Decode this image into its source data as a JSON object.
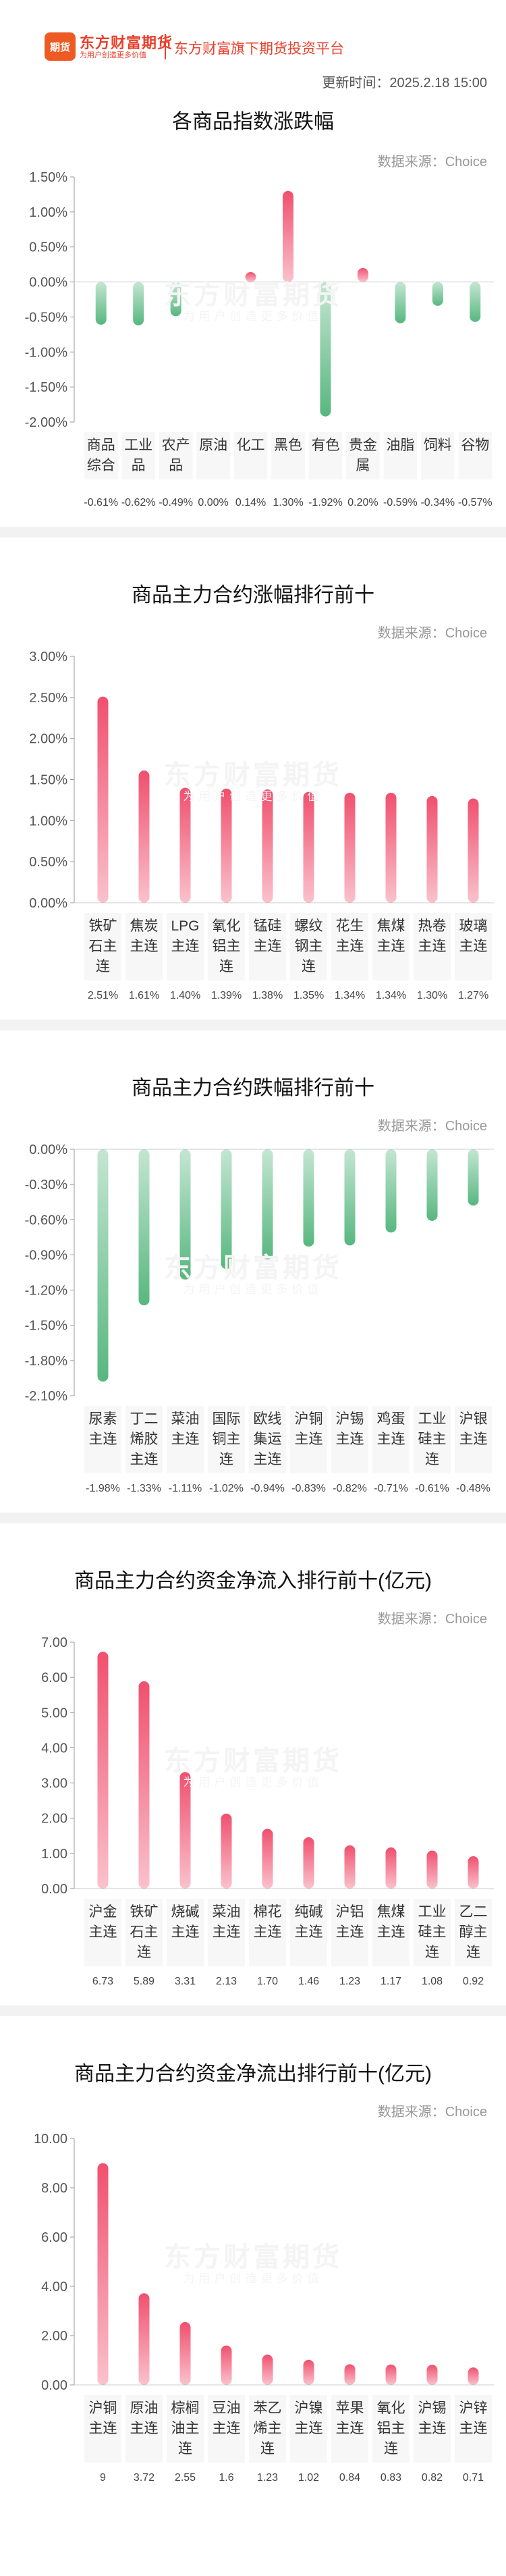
{
  "header": {
    "logo_text": "期货",
    "brand_name": "东方财富期货",
    "brand_slogan": "为用户创造更多价值",
    "platform_name": "东方财富旗下期货投资平台",
    "update_time": "更新时间：2025.2.18 15:00"
  },
  "colors": {
    "up": "#f0506e",
    "down": "#57b77f",
    "background": "#ffffff"
  },
  "watermark": {
    "main": "东方财富期货",
    "sub": "为用户创造更多价值"
  },
  "chart_data": [
    {
      "type": "bar",
      "title": "各商品指数涨跌幅",
      "source": "数据来源：Choice",
      "categories": [
        "商品综合",
        "工业品",
        "农产品",
        "原油",
        "化工",
        "黑色",
        "有色",
        "贵金属",
        "油脂",
        "饲料",
        "谷物"
      ],
      "values": [
        -0.61,
        -0.62,
        -0.49,
        0.0,
        0.14,
        1.3,
        -1.92,
        0.2,
        -0.59,
        -0.34,
        -0.57
      ],
      "value_labels": [
        "-0.61%",
        "-0.62%",
        "-0.49%",
        "0.00%",
        "0.14%",
        "1.30%",
        "-1.92%",
        "0.20%",
        "-0.59%",
        "-0.34%",
        "-0.57%"
      ],
      "y_ticks": [
        "1.50%",
        "1.00%",
        "0.50%",
        "0.00%",
        "-0.50%",
        "-1.00%",
        "-1.50%",
        "-2.00%"
      ],
      "ylim": [
        -2.0,
        1.5
      ],
      "unit": "%"
    },
    {
      "type": "bar",
      "title": "商品主力合约涨幅排行前十",
      "source": "数据来源：Choice",
      "categories": [
        "铁矿石主连",
        "焦炭主连",
        "LPG主连",
        "氧化铝主连",
        "锰硅主连",
        "螺纹钢主连",
        "花生主连",
        "焦煤主连",
        "热卷主连",
        "玻璃主连"
      ],
      "values": [
        2.51,
        1.61,
        1.4,
        1.39,
        1.38,
        1.35,
        1.34,
        1.34,
        1.3,
        1.27
      ],
      "value_labels": [
        "2.51%",
        "1.61%",
        "1.40%",
        "1.39%",
        "1.38%",
        "1.35%",
        "1.34%",
        "1.34%",
        "1.30%",
        "1.27%"
      ],
      "y_ticks": [
        "3.00%",
        "2.50%",
        "2.00%",
        "1.50%",
        "1.00%",
        "0.50%",
        "0.00%"
      ],
      "ylim": [
        0,
        3.0
      ],
      "unit": "%"
    },
    {
      "type": "bar",
      "title": "商品主力合约跌幅排行前十",
      "source": "数据来源：Choice",
      "categories": [
        "尿素主连",
        "丁二烯胶主连",
        "菜油主连",
        "国际铜主连",
        "欧线集运主连",
        "沪铜主连",
        "沪锡主连",
        "鸡蛋主连",
        "工业硅主连",
        "沪银主连"
      ],
      "values": [
        -1.98,
        -1.33,
        -1.11,
        -1.02,
        -0.94,
        -0.83,
        -0.82,
        -0.71,
        -0.61,
        -0.48
      ],
      "value_labels": [
        "-1.98%",
        "-1.33%",
        "-1.11%",
        "-1.02%",
        "-0.94%",
        "-0.83%",
        "-0.82%",
        "-0.71%",
        "-0.61%",
        "-0.48%"
      ],
      "y_ticks": [
        "0.00%",
        "-0.30%",
        "-0.60%",
        "-0.90%",
        "-1.20%",
        "-1.50%",
        "-1.80%",
        "-2.10%"
      ],
      "ylim": [
        -2.1,
        0
      ],
      "unit": "%"
    },
    {
      "type": "bar",
      "title": "商品主力合约资金净流入排行前十(亿元)",
      "source": "数据来源：Choice",
      "categories": [
        "沪金主连",
        "铁矿石主连",
        "烧碱主连",
        "菜油主连",
        "棉花主连",
        "纯碱主连",
        "沪铝主连",
        "焦煤主连",
        "工业硅主连",
        "乙二醇主连"
      ],
      "values": [
        6.73,
        5.89,
        3.31,
        2.13,
        1.7,
        1.46,
        1.23,
        1.17,
        1.08,
        0.92
      ],
      "value_labels": [
        "6.73",
        "5.89",
        "3.31",
        "2.13",
        "1.70",
        "1.46",
        "1.23",
        "1.17",
        "1.08",
        "0.92"
      ],
      "y_ticks": [
        "7.00",
        "6.00",
        "5.00",
        "4.00",
        "3.00",
        "2.00",
        "1.00",
        "0.00"
      ],
      "ylim": [
        0,
        7.0
      ],
      "unit": "亿元"
    },
    {
      "type": "bar",
      "title": "商品主力合约资金净流出排行前十(亿元)",
      "source": "数据来源：Choice",
      "categories": [
        "沪铜主连",
        "原油主连",
        "棕榈油主连",
        "豆油主连",
        "苯乙烯主连",
        "沪镍主连",
        "苹果主连",
        "氧化铝主连",
        "沪锡主连",
        "沪锌主连"
      ],
      "values": [
        9,
        3.72,
        2.55,
        1.6,
        1.23,
        1.02,
        0.84,
        0.83,
        0.82,
        0.71
      ],
      "value_labels": [
        "9",
        "3.72",
        "2.55",
        "1.6",
        "1.23",
        "1.02",
        "0.84",
        "0.83",
        "0.82",
        "0.71"
      ],
      "y_ticks": [
        "10.00",
        "8.00",
        "6.00",
        "4.00",
        "2.00",
        "0.00"
      ],
      "ylim": [
        0,
        10.0
      ],
      "unit": "亿元"
    }
  ]
}
